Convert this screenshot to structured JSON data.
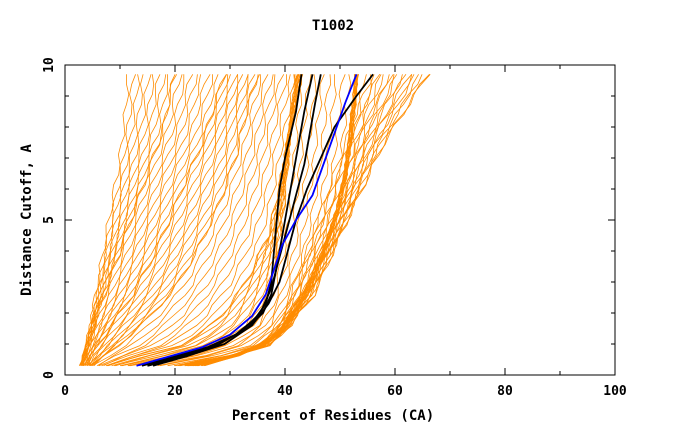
{
  "chart_data": {
    "type": "line",
    "title": "T1002",
    "xlabel": "Percent of Residues (CA)",
    "ylabel": "Distance Cutoff, A",
    "xlim": [
      0,
      100
    ],
    "ylim": [
      0,
      10
    ],
    "x_ticks": [
      "0",
      "20",
      "40",
      "60",
      "80",
      "100"
    ],
    "y_ticks": [
      "0",
      "5",
      "10"
    ],
    "grid": false,
    "colors": {
      "background_models": "#ff8c00",
      "highlight_models": "#000000",
      "reference_model": "#0000ff"
    },
    "series_groups": [
      {
        "group": "background models",
        "color": "#ff8c00",
        "note": "many submitted models, spread between these bounding curves",
        "series": [
          {
            "x": [
              3,
              4,
              5,
              6,
              7,
              8,
              9,
              10,
              11,
              11.5
            ],
            "y": [
              0.3,
              1,
              2,
              3,
              4,
              5,
              6,
              7,
              8.5,
              9.7
            ]
          },
          {
            "x": [
              3,
              6,
              9,
              12,
              14,
              16,
              18,
              19,
              20
            ],
            "y": [
              0.3,
              2,
              3.5,
              5,
              6,
              7,
              8,
              9,
              9.7
            ]
          },
          {
            "x": [
              4,
              8,
              12,
              16,
              19,
              22,
              25,
              27,
              29
            ],
            "y": [
              0.4,
              1.5,
              2.5,
              3.8,
              5,
              6.3,
              7.5,
              8.6,
              9.7
            ]
          },
          {
            "x": [
              5,
              10,
              15,
              20,
              24,
              28,
              31,
              33,
              35
            ],
            "y": [
              0.3,
              1,
              1.8,
              2.8,
              4,
              5.5,
              7,
              8.5,
              9.7
            ]
          },
          {
            "x": [
              8,
              15,
              22,
              28,
              33,
              37,
              39,
              41,
              43
            ],
            "y": [
              0.3,
              0.7,
              1,
              1.8,
              3,
              4.5,
              6,
              8,
              9.7
            ]
          },
          {
            "x": [
              12,
              20,
              28,
              34,
              37,
              39,
              40,
              41,
              42
            ],
            "y": [
              0.3,
              0.5,
              0.9,
              1.5,
              2.5,
              4,
              6,
              8,
              9.7
            ]
          },
          {
            "x": [
              22,
              30,
              37,
              41,
              45,
              49,
              51,
              52,
              53
            ],
            "y": [
              0.3,
              0.6,
              0.9,
              1.6,
              3,
              5,
              6.5,
              8,
              9.7
            ]
          },
          {
            "x": [
              23,
              32,
              38,
              43,
              47,
              50,
              51.5,
              52.5,
              53
            ],
            "y": [
              0.3,
              0.7,
              1.2,
              2.5,
              4,
              5.5,
              7,
              8.5,
              9.7
            ]
          },
          {
            "x": [
              25,
              35,
              40,
              45,
              50,
              54,
              58,
              62,
              66
            ],
            "y": [
              0.3,
              0.8,
              1.5,
              2.5,
              4.5,
              6,
              7.5,
              8.6,
              9.7
            ]
          },
          {
            "x": [
              20,
              30,
              36,
              40,
              43,
              47,
              50,
              53,
              56
            ],
            "y": [
              0.3,
              0.6,
              1,
              2,
              3.5,
              5.5,
              7,
              8.5,
              9.7
            ]
          }
        ]
      },
      {
        "group": "highlight models",
        "color": "#000000",
        "series": [
          {
            "x": [
              14,
              20,
              26,
              31,
              34.5,
              36.5,
              37.5,
              38,
              38.5,
              39,
              40,
              42,
              43
            ],
            "y": [
              0.3,
              0.6,
              0.9,
              1.3,
              1.8,
              2.3,
              3,
              4,
              5,
              6,
              7,
              8.5,
              9.7
            ]
          },
          {
            "x": [
              16,
              22,
              28,
              33,
              36,
              37.5,
              38.5,
              39.5,
              40.5,
              41.5,
              42.5,
              43.5,
              45
            ],
            "y": [
              0.3,
              0.6,
              1,
              1.5,
              2,
              2.6,
              3.5,
              4.5,
              5.5,
              6.5,
              7.5,
              8.5,
              9.7
            ]
          },
          {
            "x": [
              15,
              21,
              27,
              32,
              35.5,
              37.5,
              39,
              40.5,
              42,
              43.5,
              44.5,
              45.5,
              46.5
            ],
            "y": [
              0.3,
              0.6,
              0.9,
              1.4,
              2,
              2.8,
              3.8,
              4.8,
              5.8,
              6.8,
              7.8,
              8.8,
              9.7
            ]
          },
          {
            "x": [
              15,
              22,
              29,
              34,
              37,
              39,
              40.5,
              42,
              44,
              46.5,
              49,
              53,
              56
            ],
            "y": [
              0.3,
              0.6,
              1,
              1.6,
              2.3,
              3,
              4,
              5,
              6,
              7,
              8,
              9,
              9.7
            ]
          }
        ]
      },
      {
        "group": "reference model",
        "color": "#0000ff",
        "series": [
          {
            "x": [
              13,
              19,
              25,
              30,
              34,
              36.5,
              38,
              39.5,
              42,
              45,
              47,
              49,
              51,
              53
            ],
            "y": [
              0.3,
              0.6,
              0.9,
              1.3,
              1.9,
              2.6,
              3.4,
              4.2,
              5,
              5.8,
              6.8,
              7.8,
              8.8,
              9.7
            ]
          }
        ]
      }
    ]
  }
}
